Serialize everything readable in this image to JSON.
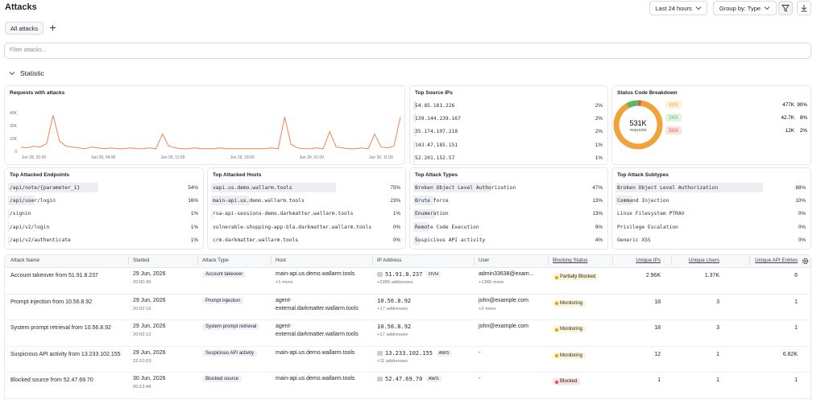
{
  "header": {
    "title": "Attacks",
    "time_range": "Last 24 hours",
    "group_by": "Group by: Type"
  },
  "tabs": [
    "All attacks"
  ],
  "filter_placeholder": "Filter attacks...",
  "section_title": "Statistic",
  "requests_chart": {
    "type": "line",
    "title": "Requests with attacks",
    "color": "#ef8354",
    "grid": false,
    "ylim": [
      0,
      45000
    ],
    "yticks": [
      0,
      {
        "value": 15000,
        "label": "15K"
      },
      {
        "value": 30000,
        "label": "30K"
      },
      {
        "value": 45000,
        "label": "45K"
      }
    ],
    "x_axis_labels": [
      "Jun 28, 20:00",
      "Jun 29, 04:00",
      "Jun 29, 11:00",
      "Jun 29, 18:00",
      "Jun 30, 01:00",
      "Jun 30, 11:00"
    ],
    "values": [
      5000,
      4000,
      6000,
      5000,
      9000,
      42000,
      12000,
      6000,
      5000,
      4000,
      3000,
      5000,
      4000,
      3000,
      4000,
      3000,
      3000,
      4000,
      3000,
      3000,
      4000,
      3000,
      20000,
      6000,
      4000,
      3000,
      3000,
      4000,
      3000,
      3000,
      3000,
      4000,
      3000,
      3000,
      3000,
      3000,
      3000,
      3000,
      3000,
      4000,
      3000,
      40000,
      8000,
      4000,
      3000,
      3000,
      4000,
      3000,
      23000,
      5000,
      4000,
      3000,
      3000,
      4000,
      3000,
      20000,
      5000,
      4000,
      6000,
      40000
    ]
  },
  "panels": [
    {
      "title": "Top Source IPs",
      "items": [
        {
          "label": "54.85.181.226",
          "value": 2,
          "value_label": "2%"
        },
        {
          "label": "139.144.239.167",
          "value": 2,
          "value_label": "2%"
        },
        {
          "label": "35.174.107.218",
          "value": 2,
          "value_label": "2%"
        },
        {
          "label": "143.47.185.151",
          "value": 1,
          "value_label": "1%"
        },
        {
          "label": "52.201.152.57",
          "value": 1,
          "value_label": "1%"
        }
      ]
    },
    {
      "title": "Top Attacked Endpoints",
      "items": [
        {
          "label": "/api/note/{parameter_1}",
          "value": 54,
          "value_label": "54%"
        },
        {
          "label": "/api/user/login",
          "value": 16,
          "value_label": "16%"
        },
        {
          "label": "/signin",
          "value": 1,
          "value_label": "1%"
        },
        {
          "label": "/api/v2/login",
          "value": 1,
          "value_label": "1%"
        },
        {
          "label": "/api/v2/authenticate",
          "value": 1,
          "value_label": "1%"
        }
      ]
    },
    {
      "title": "Top Attacked Hosts",
      "items": [
        {
          "label": "vapi.us.demo.wallarm.tools",
          "value": 75,
          "value_label": "75%"
        },
        {
          "label": "main-api.us.demo.wallarm.tools",
          "value": 23,
          "value_label": "23%"
        },
        {
          "label": "rsa-api-sessions-demo.darkmatter.wallarm.tools",
          "value": 1,
          "value_label": "1%"
        },
        {
          "label": "vulnerable-shopping-app-bla.darkmatter.wallarm.tools",
          "value": 0,
          "value_label": "0%"
        },
        {
          "label": "crm.darkmatter.wallarm.tools",
          "value": 0,
          "value_label": "0%"
        }
      ]
    },
    {
      "title": "Top Attack Types",
      "items": [
        {
          "label": "Broken Object Level Authorization",
          "value": 47,
          "value_label": "47%"
        },
        {
          "label": "Brute force",
          "value": 13,
          "value_label": "13%"
        },
        {
          "label": "Enumeration",
          "value": 13,
          "value_label": "13%"
        },
        {
          "label": "Remote Code Execution",
          "value": 9,
          "value_label": "9%"
        },
        {
          "label": "Suspicious API activity",
          "value": 4,
          "value_label": "4%"
        }
      ]
    },
    {
      "title": "Top Attack Subtypes",
      "items": [
        {
          "label": "Broken Object Level Authorization",
          "value": 88,
          "value_label": "88%"
        },
        {
          "label": "Command Injection",
          "value": 10,
          "value_label": "10%"
        },
        {
          "label": "Linux Filesystem PTRAV",
          "value": 0,
          "value_label": "0%"
        },
        {
          "label": "Privilege Escalation",
          "value": 0,
          "value_label": "0%"
        },
        {
          "label": "Generic XSS",
          "value": 0,
          "value_label": "0%"
        }
      ]
    }
  ],
  "status_codes": {
    "type": "pie",
    "title": "Status Code Breakdown",
    "total": "531K",
    "total_label": "requests",
    "items": [
      {
        "code": "4XX",
        "count": "477K",
        "value": 90,
        "value_label": "90%",
        "color": "#f0a23b",
        "badge_color": "#fdf0d9"
      },
      {
        "code": "2XX",
        "count": "42.7K",
        "value": 8,
        "value_label": "8%",
        "color": "#5cb85c",
        "badge_color": "#e2f4e2"
      },
      {
        "code": "5XX",
        "count": "12K",
        "value": 2,
        "value_label": "2%",
        "color": "#d9534f",
        "badge_color": "#fbe1e0"
      }
    ]
  },
  "table": {
    "columns": [
      "Attack Name",
      "Started",
      "Attack Type",
      "Host",
      "IP Address",
      "User",
      "Blocking Status",
      "Unique IPs",
      "Unique Users",
      "Unique API Entries"
    ],
    "rows": [
      {
        "name": "Account takeover from 51.91.8.237",
        "started_date": "29 Jun, 2026",
        "started_time": "20:00:36",
        "type": "Account takeover",
        "host": "main-api.us.demo.wallarm.tools",
        "host_more": "+1 more",
        "ip": "51.91.8.237",
        "ip_org": "OVH",
        "ip_more": "+2956 addresses",
        "user": "admin33638@exam...",
        "user_more": "+1365 more",
        "status": "Partially Blocked",
        "status_color": "#e0a400",
        "status_bg": "#fdf3d6",
        "unique_ips": "2.96K",
        "unique_users": "1.37K",
        "unique_api_entries": "6"
      },
      {
        "name": "Prompt injection from 10.56.8.92",
        "started_date": "29 Jun, 2026",
        "started_time": "20:02:16",
        "type": "Prompt injection",
        "host": "agent-",
        "host_line2": "external.darkmatter.wallarm.tools",
        "ip": "10.56.8.92",
        "ip_more": "+17 addresses",
        "user": "john@example.com",
        "user_more": "+2 more",
        "status": "Monitoring",
        "status_color": "#e0a400",
        "status_bg": "#fdf3d6",
        "unique_ips": "18",
        "unique_users": "3",
        "unique_api_entries": "1"
      },
      {
        "name": "System prompt retrieval from 10.56.8.92",
        "started_date": "29 Jun, 2026",
        "started_time": "20:02:12",
        "type": "System prompt retrieval",
        "host": "agent-",
        "host_line2": "external.darkmatter.wallarm.tools",
        "ip": "10.56.8.92",
        "ip_more": "+17 addresses",
        "user": "john@example.com",
        "status": "Monitoring",
        "status_color": "#e0a400",
        "status_bg": "#fdf3d6",
        "unique_ips": "18",
        "unique_users": "3",
        "unique_api_entries": "1"
      },
      {
        "name": "Suspicious API activity from 13.233.102.155",
        "started_date": "29 Jun, 2026",
        "started_time": "22:10:03",
        "type": "Suspicious API activity",
        "host": "main-api.us.demo.wallarm.tools",
        "ip": "13.233.102.155",
        "ip_org": "AWS",
        "ip_more": "+11 addresses",
        "user": "-",
        "status": "Monitoring",
        "status_color": "#e0a400",
        "status_bg": "#fdf3d6",
        "unique_ips": "12",
        "unique_users": "1",
        "unique_api_entries": "6.82K"
      },
      {
        "name": "Blocked source from 52.47.69.70",
        "started_date": "30 Jun, 2026",
        "started_time": "00:13:44",
        "type": "Blocked source",
        "host": "main-api.us.demo.wallarm.tools",
        "ip": "52.47.69.70",
        "ip_org": "AWS",
        "user": "-",
        "status": "Blocked",
        "status_color": "#d9534f",
        "status_bg": "#fbe1e0",
        "unique_ips": "1",
        "unique_users": "1",
        "unique_api_entries": "1"
      }
    ]
  }
}
